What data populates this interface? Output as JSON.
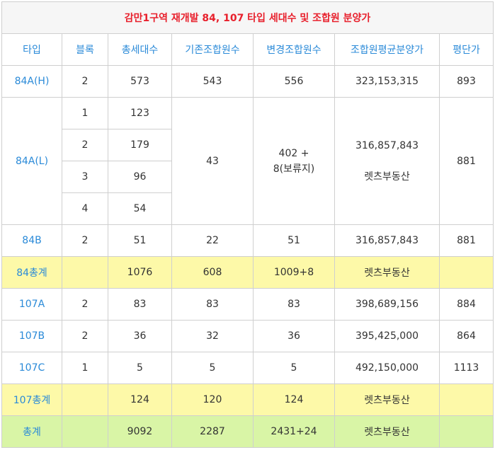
{
  "title": "감만1구역 재개발 84, 107 타입 세대수 및 조합원 분양가",
  "headers": [
    "타입",
    "블록",
    "총세대수",
    "기존조합원수",
    "변경조합원수",
    "조합원평균분양가",
    "평단가"
  ],
  "rows": {
    "r84ah": {
      "type": "84A(H)",
      "block": "2",
      "units": "573",
      "orig": "543",
      "changed": "556",
      "price": "323,153,315",
      "pyeong": "893"
    },
    "r84al": {
      "type": "84A(L)",
      "sub": [
        {
          "block": "1",
          "units": "123"
        },
        {
          "block": "2",
          "units": "179"
        },
        {
          "block": "3",
          "units": "96"
        },
        {
          "block": "4",
          "units": "54"
        }
      ],
      "orig": "43",
      "changed_line1": "402 +",
      "changed_line2": "8(보류지)",
      "price": "316,857,843",
      "price_note": "렛츠부동산",
      "pyeong": "881"
    },
    "r84b": {
      "type": "84B",
      "block": "2",
      "units": "51",
      "orig": "22",
      "changed": "51",
      "price": "316,857,843",
      "pyeong": "881"
    },
    "t84": {
      "type": "84총계",
      "block": "",
      "units": "1076",
      "orig": "608",
      "changed": "1009+8",
      "price": "렛츠부동산",
      "pyeong": ""
    },
    "r107a": {
      "type": "107A",
      "block": "2",
      "units": "83",
      "orig": "83",
      "changed": "83",
      "price": "398,689,156",
      "pyeong": "884"
    },
    "r107b": {
      "type": "107B",
      "block": "2",
      "units": "36",
      "orig": "32",
      "changed": "36",
      "price": "395,425,000",
      "pyeong": "864"
    },
    "r107c": {
      "type": "107C",
      "block": "1",
      "units": "5",
      "orig": "5",
      "changed": "5",
      "price": "492,150,000",
      "pyeong": "1113"
    },
    "t107": {
      "type": "107총계",
      "block": "",
      "units": "124",
      "orig": "120",
      "changed": "124",
      "price": "렛츠부동산",
      "pyeong": ""
    },
    "total": {
      "type": "총계",
      "block": "",
      "units": "9092",
      "orig": "2287",
      "changed": "2431+24",
      "price": "렛츠부동산",
      "pyeong": ""
    }
  },
  "colors": {
    "title": "#e8202c",
    "accent": "#2a8ad8",
    "subtotal_bg": "#fdf9a8",
    "total_bg": "#d9f5a6"
  }
}
